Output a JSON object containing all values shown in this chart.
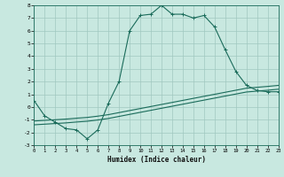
{
  "xlabel": "Humidex (Indice chaleur)",
  "xlim": [
    0,
    23
  ],
  "ylim": [
    -3,
    8
  ],
  "yticks": [
    -3,
    -2,
    -1,
    0,
    1,
    2,
    3,
    4,
    5,
    6,
    7,
    8
  ],
  "xticks": [
    0,
    1,
    2,
    3,
    4,
    5,
    6,
    7,
    8,
    9,
    10,
    11,
    12,
    13,
    14,
    15,
    16,
    17,
    18,
    19,
    20,
    21,
    22,
    23
  ],
  "bg_color": "#c8e8e0",
  "grid_color": "#a0c8c0",
  "line_color": "#1a6b5a",
  "line1_x": [
    0,
    1,
    2,
    3,
    4,
    5,
    6,
    7,
    8,
    9,
    10,
    11,
    12,
    13,
    14,
    15,
    16,
    17,
    18,
    19,
    20,
    21,
    22,
    23
  ],
  "line1_y": [
    0.5,
    -0.7,
    -1.2,
    -1.7,
    -1.8,
    -2.5,
    -1.8,
    0.3,
    2.0,
    6.0,
    7.2,
    7.3,
    8.0,
    7.3,
    7.3,
    7.0,
    7.2,
    6.3,
    4.5,
    2.8,
    1.7,
    1.3,
    1.2,
    1.2
  ],
  "line2_x": [
    0,
    1,
    2,
    3,
    4,
    5,
    6,
    7,
    8,
    9,
    10,
    11,
    12,
    13,
    14,
    15,
    16,
    17,
    18,
    19,
    20,
    21,
    22,
    23
  ],
  "line2_y": [
    -1.1,
    -1.05,
    -1.0,
    -0.95,
    -0.88,
    -0.82,
    -0.72,
    -0.6,
    -0.44,
    -0.28,
    -0.12,
    0.04,
    0.2,
    0.36,
    0.52,
    0.68,
    0.84,
    1.0,
    1.16,
    1.32,
    1.48,
    1.55,
    1.62,
    1.7
  ],
  "line3_x": [
    0,
    1,
    2,
    3,
    4,
    5,
    6,
    7,
    8,
    9,
    10,
    11,
    12,
    13,
    14,
    15,
    16,
    17,
    18,
    19,
    20,
    21,
    22,
    23
  ],
  "line3_y": [
    -1.4,
    -1.35,
    -1.3,
    -1.25,
    -1.18,
    -1.12,
    -1.02,
    -0.9,
    -0.74,
    -0.58,
    -0.42,
    -0.26,
    -0.1,
    0.06,
    0.22,
    0.38,
    0.54,
    0.7,
    0.86,
    1.02,
    1.18,
    1.25,
    1.32,
    1.4
  ]
}
